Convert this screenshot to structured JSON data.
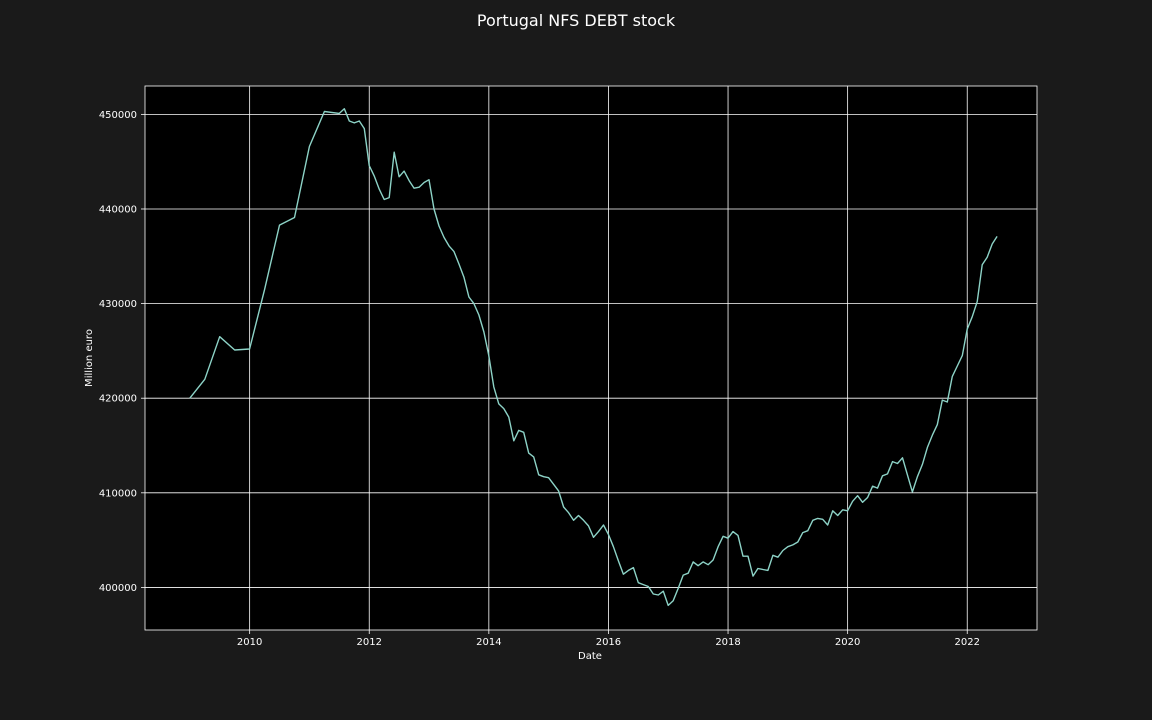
{
  "chart_data": {
    "type": "line",
    "title": "Portugal NFS DEBT stock",
    "xlabel": "Date",
    "ylabel": "Million euro",
    "x_ticks": [
      "2010",
      "2012",
      "2014",
      "2016",
      "2018",
      "2020",
      "2022"
    ],
    "y_ticks": [
      "400000",
      "410000",
      "420000",
      "430000",
      "440000",
      "450000"
    ],
    "xlim": [
      "2008-04",
      "2023-03"
    ],
    "ylim": [
      395500,
      453000
    ],
    "grid": true,
    "legend": "none",
    "colors": {
      "background": "#1a1a1a",
      "plot_background": "#000000",
      "line": "#8dd3c7",
      "grid": "#ffffff",
      "text": "#ffffff"
    },
    "series": [
      {
        "x": [
          "2009-01",
          "2009-04",
          "2009-07",
          "2009-10",
          "2010-01",
          "2010-04",
          "2010-07",
          "2010-10",
          "2011-01",
          "2011-04",
          "2011-07",
          "2011-08",
          "2011-09",
          "2011-10",
          "2011-11",
          "2011-12",
          "2012-01",
          "2012-02",
          "2012-03",
          "2012-04",
          "2012-05",
          "2012-06",
          "2012-07",
          "2012-08",
          "2012-09",
          "2012-10",
          "2012-11",
          "2012-12",
          "2013-01",
          "2013-02",
          "2013-03",
          "2013-04",
          "2013-05",
          "2013-06",
          "2013-07",
          "2013-08",
          "2013-09",
          "2013-10",
          "2013-11",
          "2013-12",
          "2014-01",
          "2014-02",
          "2014-03",
          "2014-04",
          "2014-05",
          "2014-06",
          "2014-07",
          "2014-08",
          "2014-09",
          "2014-10",
          "2014-11",
          "2014-12",
          "2015-01",
          "2015-02",
          "2015-03",
          "2015-04",
          "2015-05",
          "2015-06",
          "2015-07",
          "2015-08",
          "2015-09",
          "2015-10",
          "2015-11",
          "2015-12",
          "2016-01",
          "2016-02",
          "2016-03",
          "2016-04",
          "2016-05",
          "2016-06",
          "2016-07",
          "2016-08",
          "2016-09",
          "2016-10",
          "2016-11",
          "2016-12",
          "2017-01",
          "2017-02",
          "2017-03",
          "2017-04",
          "2017-05",
          "2017-06",
          "2017-07",
          "2017-08",
          "2017-09",
          "2017-10",
          "2017-11",
          "2017-12",
          "2018-01",
          "2018-02",
          "2018-03",
          "2018-04",
          "2018-05",
          "2018-06",
          "2018-07",
          "2018-08",
          "2018-09",
          "2018-10",
          "2018-11",
          "2018-12",
          "2019-01",
          "2019-02",
          "2019-03",
          "2019-04",
          "2019-05",
          "2019-06",
          "2019-07",
          "2019-08",
          "2019-09",
          "2019-10",
          "2019-11",
          "2019-12",
          "2020-01",
          "2020-02",
          "2020-03",
          "2020-04",
          "2020-05",
          "2020-06",
          "2020-07",
          "2020-08",
          "2020-09",
          "2020-10",
          "2020-11",
          "2020-12",
          "2021-01",
          "2021-02",
          "2021-03",
          "2021-04",
          "2021-05",
          "2021-06",
          "2021-07",
          "2021-08",
          "2021-09",
          "2021-10",
          "2021-11",
          "2021-12",
          "2022-01",
          "2022-02",
          "2022-03",
          "2022-04",
          "2022-05",
          "2022-06",
          "2022-07"
        ],
        "values": [
          420000,
          422000,
          426500,
          425100,
          425200,
          431500,
          438300,
          439100,
          446600,
          450300,
          450100,
          450600,
          449300,
          449100,
          449300,
          448500,
          444600,
          443500,
          442100,
          441000,
          441200,
          446000,
          443400,
          444000,
          443000,
          442200,
          442300,
          442800,
          443100,
          440000,
          438200,
          437000,
          436100,
          435500,
          434200,
          432800,
          430700,
          430000,
          428800,
          427000,
          424500,
          421200,
          419400,
          418900,
          418000,
          415500,
          416600,
          416400,
          414200,
          413800,
          411900,
          411700,
          411600,
          410900,
          410200,
          408500,
          407900,
          407100,
          407600,
          407100,
          406500,
          405300,
          405900,
          406600,
          405600,
          404300,
          402800,
          401400,
          401800,
          402100,
          400500,
          400300,
          400100,
          399300,
          399200,
          399600,
          398100,
          398600,
          399900,
          401300,
          401500,
          402700,
          402300,
          402700,
          402400,
          402900,
          404300,
          405400,
          405200,
          405900,
          405500,
          403300,
          403300,
          401200,
          402000,
          401900,
          401800,
          403400,
          403200,
          403900,
          404300,
          404500,
          404800,
          405800,
          406000,
          407100,
          407300,
          407200,
          406600,
          408100,
          407600,
          408200,
          408100,
          409100,
          409700,
          409000,
          409500,
          410700,
          410500,
          411800,
          412000,
          413300,
          413100,
          413700,
          411900,
          410100,
          411700,
          413000,
          414800,
          416100,
          417200,
          419800,
          419600,
          422300,
          423400,
          424500,
          427300,
          428600,
          430200,
          434100,
          434900,
          436300,
          437100
        ]
      }
    ]
  }
}
